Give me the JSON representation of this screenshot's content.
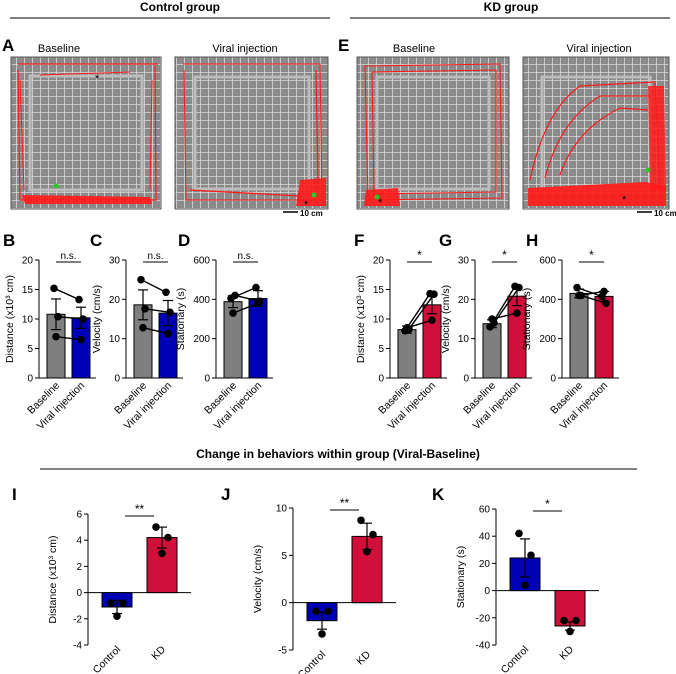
{
  "header": {
    "control_title": "Control group",
    "kd_title": "KD group",
    "change_title": "Change in behaviors within group (Viral-Baseline)"
  },
  "photos": {
    "A": {
      "letter": "A",
      "left_label": "Baseline",
      "right_label": "Viral injection",
      "scale_bar": "10 cm"
    },
    "E": {
      "letter": "E",
      "left_label": "Baseline",
      "right_label": "Viral injection",
      "scale_bar": "10 cm"
    }
  },
  "colors": {
    "baseline_bar": "#7f7f7f",
    "control_bar": "#0000b4",
    "kd_bar": "#d0103a",
    "significance": "#ff0000",
    "trace": "#ff1a1a"
  },
  "chart_data": [
    {
      "panel": "B",
      "type": "bar",
      "categories": [
        "Baseline",
        "Viral injection"
      ],
      "values": [
        10.8,
        10.2
      ],
      "errors": [
        2.6,
        1.8
      ],
      "points": [
        [
          15.2,
          10.4,
          7.0
        ],
        [
          13.3,
          10.0,
          6.5
        ]
      ],
      "paired": true,
      "ylabel": "Distance (x10³ cm)",
      "ylim": [
        0,
        20
      ],
      "yticks": [
        "0",
        "5",
        "10",
        "15",
        "20"
      ],
      "significance": "n.s."
    },
    {
      "panel": "C",
      "type": "bar",
      "categories": [
        "Baseline",
        "Viral injection"
      ],
      "values": [
        18.6,
        16.5
      ],
      "errors": [
        3.8,
        3.2
      ],
      "points": [
        [
          25.0,
          17.6,
          12.8
        ],
        [
          21.8,
          16.7,
          11.3
        ]
      ],
      "paired": true,
      "ylabel": "Velocity (cm/s)",
      "ylim": [
        0,
        30
      ],
      "yticks": [
        "0",
        "10",
        "20",
        "30"
      ],
      "significance": "n.s."
    },
    {
      "panel": "D",
      "type": "bar",
      "categories": [
        "Baseline",
        "Viral injection"
      ],
      "values": [
        388,
        404
      ],
      "errors": [
        30,
        40
      ],
      "points": [
        [
          405,
          420,
          330
        ],
        [
          460,
          390,
          380
        ]
      ],
      "paired": true,
      "ylabel": "Stationary (s)",
      "ylim": [
        0,
        600
      ],
      "yticks": [
        "0",
        "200",
        "400",
        "600"
      ],
      "significance": "n.s."
    },
    {
      "panel": "F",
      "type": "bar",
      "categories": [
        "Baseline",
        "Viral injection"
      ],
      "values": [
        8.2,
        12.4
      ],
      "errors": [
        0.6,
        1.5
      ],
      "points": [
        [
          8.0,
          8.3,
          8.5
        ],
        [
          14.3,
          14.2,
          9.8
        ]
      ],
      "paired": true,
      "ylabel": "Distance (x10³ cm)",
      "ylim": [
        0,
        20
      ],
      "yticks": [
        "0",
        "5",
        "10",
        "15",
        "20"
      ],
      "significance": "*"
    },
    {
      "panel": "G",
      "type": "bar",
      "categories": [
        "Baseline",
        "Viral injection"
      ],
      "values": [
        13.8,
        20.8
      ],
      "errors": [
        1.0,
        2.4
      ],
      "points": [
        [
          13.0,
          14.0,
          15.0
        ],
        [
          23.3,
          23.0,
          16.5
        ]
      ],
      "paired": true,
      "ylabel": "Velocity (cm/s)",
      "ylim": [
        0,
        30
      ],
      "yticks": [
        "0",
        "10",
        "20",
        "30"
      ],
      "significance": "*"
    },
    {
      "panel": "H",
      "type": "bar",
      "categories": [
        "Baseline",
        "Viral injection"
      ],
      "values": [
        430,
        415
      ],
      "errors": [
        22,
        25
      ],
      "points": [
        [
          460,
          420,
          420
        ],
        [
          415,
          380,
          440
        ]
      ],
      "paired": true,
      "ylabel": "Stationary (s)",
      "ylim": [
        0,
        600
      ],
      "yticks": [
        "0",
        "200",
        "400",
        "600"
      ],
      "significance": "*"
    },
    {
      "panel": "I",
      "type": "bar",
      "categories": [
        "Control",
        "KD"
      ],
      "values": [
        -1.1,
        4.2
      ],
      "errors": [
        0.5,
        0.8
      ],
      "points": [
        [
          -0.8,
          -0.8,
          -1.8
        ],
        [
          5.0,
          4.2,
          3.0
        ]
      ],
      "paired": false,
      "ylabel": "Distance (x10³ cm)",
      "ylim": [
        -4,
        6
      ],
      "yticks": [
        "-4",
        "-2",
        "0",
        "2",
        "4",
        "6"
      ],
      "significance": "**"
    },
    {
      "panel": "J",
      "type": "bar",
      "categories": [
        "Control",
        "KD"
      ],
      "values": [
        -1.9,
        7.0
      ],
      "errors": [
        0.9,
        1.4
      ],
      "points": [
        [
          -0.9,
          -0.9,
          -3.3
        ],
        [
          8.7,
          7.2,
          5.4
        ]
      ],
      "paired": false,
      "ylabel": "Velocity (cm/s)",
      "ylim": [
        -5,
        10
      ],
      "yticks": [
        "-5",
        "0",
        "5",
        "10"
      ],
      "significance": "**"
    },
    {
      "panel": "K",
      "type": "bar",
      "categories": [
        "Control",
        "KD"
      ],
      "values": [
        24,
        -26
      ],
      "errors": [
        14,
        3
      ],
      "points": [
        [
          42,
          26,
          4
        ],
        [
          -22,
          -22,
          -30
        ]
      ],
      "paired": false,
      "ylabel": "Stationary (s)",
      "ylim": [
        -40,
        60
      ],
      "yticks": [
        "-40",
        "-20",
        "0",
        "20",
        "40",
        "60"
      ],
      "significance": "*"
    }
  ]
}
